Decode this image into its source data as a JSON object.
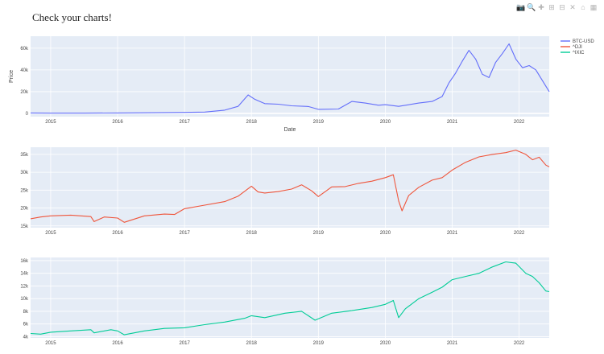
{
  "page": {
    "title": "Check your charts!"
  },
  "modebar": {
    "icons": [
      {
        "name": "camera-icon",
        "glyph": "📷"
      },
      {
        "name": "zoom-icon",
        "glyph": "🔍"
      },
      {
        "name": "pan-icon",
        "glyph": "✚"
      },
      {
        "name": "zoom-in-icon",
        "glyph": "⊞"
      },
      {
        "name": "zoom-out-icon",
        "glyph": "⊟"
      },
      {
        "name": "autoscale-icon",
        "glyph": "✕"
      },
      {
        "name": "reset-axes-icon",
        "glyph": "⌂"
      },
      {
        "name": "plotly-logo-icon",
        "glyph": "▦"
      }
    ]
  },
  "chart_data": [
    {
      "type": "line",
      "ylabel": "Price",
      "xlabel": "Date",
      "xlim": [
        2014.7,
        2022.45
      ],
      "ylim": [
        -3000,
        71000
      ],
      "x_ticks": [
        2015,
        2016,
        2017,
        2018,
        2019,
        2020,
        2021,
        2022
      ],
      "y_ticks": [
        {
          "v": 0,
          "label": "0"
        },
        {
          "v": 20000,
          "label": "20k"
        },
        {
          "v": 40000,
          "label": "40k"
        },
        {
          "v": 60000,
          "label": "60k"
        }
      ],
      "legend": {
        "position": "top-right",
        "entries": [
          {
            "name": "BTC-USD",
            "color": "#636efa"
          },
          {
            "name": "^DJI",
            "color": "#ef553b"
          },
          {
            "name": "^IXIC",
            "color": "#00cc96"
          }
        ]
      },
      "series": [
        {
          "name": "BTC-USD",
          "color": "#636efa",
          "x": [
            2014.7,
            2015.0,
            2015.5,
            2016.0,
            2016.5,
            2017.0,
            2017.3,
            2017.6,
            2017.8,
            2017.95,
            2018.05,
            2018.2,
            2018.4,
            2018.6,
            2018.85,
            2019.0,
            2019.3,
            2019.5,
            2019.7,
            2019.9,
            2020.0,
            2020.2,
            2020.5,
            2020.7,
            2020.85,
            2020.95,
            2021.05,
            2021.15,
            2021.25,
            2021.35,
            2021.45,
            2021.55,
            2021.65,
            2021.75,
            2021.85,
            2021.95,
            2022.05,
            2022.15,
            2022.25,
            2022.35,
            2022.45
          ],
          "y": [
            400,
            250,
            250,
            400,
            650,
            950,
            1200,
            3000,
            6500,
            17000,
            13000,
            9000,
            8500,
            7000,
            6300,
            3700,
            4000,
            11000,
            9500,
            7500,
            8000,
            6500,
            9500,
            11000,
            15500,
            28000,
            37000,
            48000,
            58000,
            50000,
            36000,
            33000,
            47000,
            55000,
            64000,
            50000,
            42000,
            44000,
            40000,
            30000,
            20000
          ]
        }
      ]
    },
    {
      "type": "line",
      "xlim": [
        2014.7,
        2022.45
      ],
      "ylim": [
        14500,
        37000
      ],
      "x_ticks": [
        2015,
        2016,
        2017,
        2018,
        2019,
        2020,
        2021,
        2022
      ],
      "y_ticks": [
        {
          "v": 15000,
          "label": "15k"
        },
        {
          "v": 20000,
          "label": "20k"
        },
        {
          "v": 25000,
          "label": "25k"
        },
        {
          "v": 30000,
          "label": "30k"
        },
        {
          "v": 35000,
          "label": "35k"
        }
      ],
      "series": [
        {
          "name": "^DJI",
          "color": "#ef553b",
          "x": [
            2014.7,
            2014.85,
            2015.0,
            2015.3,
            2015.6,
            2015.65,
            2015.8,
            2016.0,
            2016.1,
            2016.4,
            2016.7,
            2016.85,
            2017.0,
            2017.3,
            2017.6,
            2017.8,
            2018.0,
            2018.1,
            2018.2,
            2018.4,
            2018.6,
            2018.75,
            2018.9,
            2019.0,
            2019.2,
            2019.4,
            2019.6,
            2019.8,
            2020.0,
            2020.12,
            2020.2,
            2020.25,
            2020.35,
            2020.5,
            2020.7,
            2020.85,
            2021.0,
            2021.2,
            2021.4,
            2021.6,
            2021.8,
            2021.95,
            2022.1,
            2022.2,
            2022.3,
            2022.4,
            2022.45
          ],
          "y": [
            17000,
            17500,
            17800,
            18000,
            17600,
            16200,
            17500,
            17200,
            16000,
            17800,
            18300,
            18200,
            19800,
            20800,
            21800,
            23300,
            26100,
            24500,
            24200,
            24600,
            25300,
            26500,
            24800,
            23200,
            25900,
            26000,
            26900,
            27500,
            28500,
            29300,
            22000,
            19200,
            23500,
            25800,
            27800,
            28500,
            30600,
            32800,
            34300,
            35000,
            35500,
            36200,
            35000,
            33500,
            34200,
            32000,
            31500
          ]
        }
      ]
    },
    {
      "type": "line",
      "xlim": [
        2014.7,
        2022.45
      ],
      "ylim": [
        3800,
        16500
      ],
      "x_ticks": [
        2015,
        2016,
        2017,
        2018,
        2019,
        2020,
        2021,
        2022
      ],
      "y_ticks": [
        {
          "v": 4000,
          "label": "4k"
        },
        {
          "v": 6000,
          "label": "6k"
        },
        {
          "v": 8000,
          "label": "8k"
        },
        {
          "v": 10000,
          "label": "10k"
        },
        {
          "v": 12000,
          "label": "12k"
        },
        {
          "v": 14000,
          "label": "14k"
        },
        {
          "v": 16000,
          "label": "16k"
        }
      ],
      "series": [
        {
          "name": "^IXIC",
          "color": "#00cc96",
          "x": [
            2014.7,
            2014.85,
            2015.0,
            2015.3,
            2015.6,
            2015.65,
            2015.9,
            2016.0,
            2016.1,
            2016.4,
            2016.7,
            2017.0,
            2017.3,
            2017.6,
            2017.9,
            2018.0,
            2018.2,
            2018.5,
            2018.75,
            2018.95,
            2019.2,
            2019.5,
            2019.8,
            2020.0,
            2020.12,
            2020.2,
            2020.3,
            2020.5,
            2020.7,
            2020.85,
            2021.0,
            2021.2,
            2021.4,
            2021.6,
            2021.8,
            2021.95,
            2022.1,
            2022.2,
            2022.3,
            2022.4,
            2022.45
          ],
          "y": [
            4500,
            4400,
            4700,
            4900,
            5100,
            4600,
            5100,
            4900,
            4300,
            4900,
            5300,
            5400,
            5900,
            6300,
            6900,
            7300,
            7000,
            7700,
            8000,
            6600,
            7700,
            8100,
            8600,
            9100,
            9700,
            7000,
            8400,
            10000,
            11000,
            11800,
            13000,
            13500,
            14000,
            15000,
            15800,
            15600,
            14000,
            13500,
            12500,
            11200,
            11100
          ]
        }
      ]
    }
  ]
}
